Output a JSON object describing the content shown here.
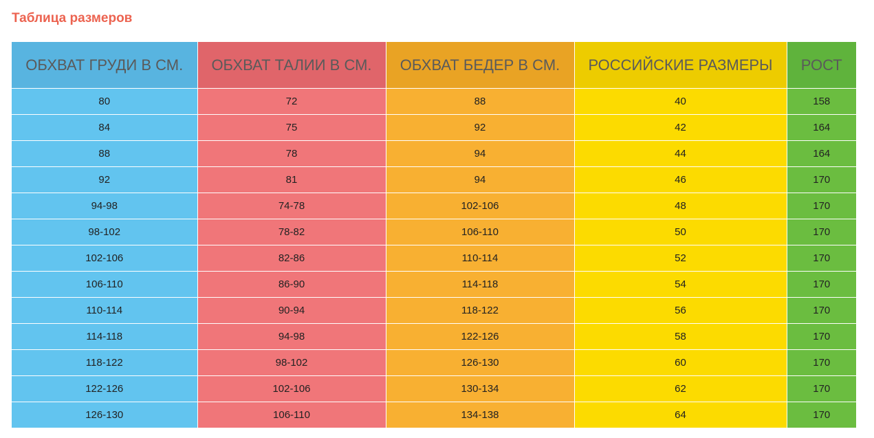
{
  "title": "Таблица размеров",
  "colors": {
    "title": "#ec6350",
    "header_bg": [
      "#58b4e0",
      "#e0656a",
      "#e9a324",
      "#edcc00",
      "#5fb33c"
    ],
    "cell_bg": [
      "#62c4ef",
      "#f07679",
      "#f8b032",
      "#fcdb00",
      "#6bbd40"
    ]
  },
  "columns": [
    "ОБХВАТ ГРУДИ В СМ.",
    "ОБХВАТ ТАЛИИ В СМ.",
    "ОБХВАТ БЕДЕР В СМ.",
    "РОССИЙСКИЕ РАЗМЕРЫ",
    "РОСТ"
  ],
  "rows": [
    [
      "80",
      "72",
      "88",
      "40",
      "158"
    ],
    [
      "84",
      "75",
      "92",
      "42",
      "164"
    ],
    [
      "88",
      "78",
      "94",
      "44",
      "164"
    ],
    [
      "92",
      "81",
      "94",
      "46",
      "170"
    ],
    [
      "94-98",
      "74-78",
      "102-106",
      "48",
      "170"
    ],
    [
      "98-102",
      "78-82",
      "106-110",
      "50",
      "170"
    ],
    [
      "102-106",
      "82-86",
      "110-114",
      "52",
      "170"
    ],
    [
      "106-110",
      "86-90",
      "114-118",
      "54",
      "170"
    ],
    [
      "110-114",
      "90-94",
      "118-122",
      "56",
      "170"
    ],
    [
      "114-118",
      "94-98",
      "122-126",
      "58",
      "170"
    ],
    [
      "118-122",
      "98-102",
      "126-130",
      "60",
      "170"
    ],
    [
      "122-126",
      "102-106",
      "130-134",
      "62",
      "170"
    ],
    [
      "126-130",
      "106-110",
      "134-138",
      "64",
      "170"
    ]
  ]
}
